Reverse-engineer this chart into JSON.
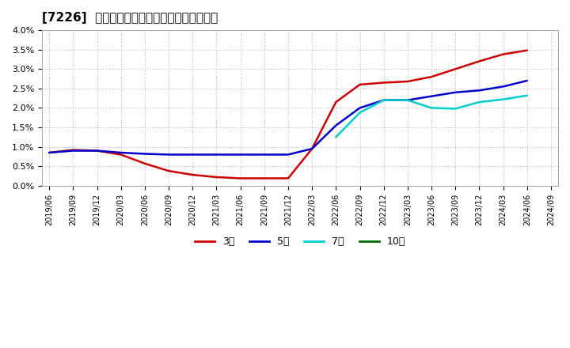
{
  "title": "[7226]  当期純利益マージンの標準偏差の推移",
  "ylim": [
    0.0,
    0.04
  ],
  "yticks": [
    0.0,
    0.005,
    0.01,
    0.015,
    0.02,
    0.025,
    0.03,
    0.035,
    0.04
  ],
  "ytick_labels": [
    "0.0%",
    "0.5%",
    "1.0%",
    "1.5%",
    "2.0%",
    "2.5%",
    "3.0%",
    "3.5%",
    "4.0%"
  ],
  "background_color": "#ffffff",
  "plot_bg_color": "#ffffff",
  "grid_color": "#bbbbbb",
  "series": {
    "3年": {
      "color": "#cc0000",
      "data": [
        [
          "2019/06",
          0.0085
        ],
        [
          "2019/09",
          0.0092
        ],
        [
          "2019/12",
          0.009
        ],
        [
          "2020/03",
          0.008
        ],
        [
          "2020/06",
          0.0057
        ],
        [
          "2020/09",
          0.0038
        ],
        [
          "2020/12",
          0.0028
        ],
        [
          "2021/03",
          0.0022
        ],
        [
          "2021/06",
          0.0019
        ],
        [
          "2021/09",
          0.0019
        ],
        [
          "2021/12",
          0.0019
        ],
        [
          "2022/03",
          0.0095
        ],
        [
          "2022/06",
          0.0215
        ],
        [
          "2022/09",
          0.026
        ],
        [
          "2022/12",
          0.0265
        ],
        [
          "2023/03",
          0.0268
        ],
        [
          "2023/06",
          0.028
        ],
        [
          "2023/09",
          0.03
        ],
        [
          "2023/12",
          0.032
        ],
        [
          "2024/03",
          0.0338
        ],
        [
          "2024/06",
          0.0348
        ]
      ]
    },
    "5年": {
      "color": "#0000cc",
      "data": [
        [
          "2019/06",
          0.0085
        ],
        [
          "2019/09",
          0.009
        ],
        [
          "2019/12",
          0.009
        ],
        [
          "2020/03",
          0.0085
        ],
        [
          "2020/06",
          0.0082
        ],
        [
          "2020/09",
          0.008
        ],
        [
          "2020/12",
          0.008
        ],
        [
          "2021/03",
          0.008
        ],
        [
          "2021/06",
          0.008
        ],
        [
          "2021/09",
          0.008
        ],
        [
          "2021/12",
          0.008
        ],
        [
          "2022/03",
          0.0095
        ],
        [
          "2022/06",
          0.0155
        ],
        [
          "2022/09",
          0.02
        ],
        [
          "2022/12",
          0.022
        ],
        [
          "2023/03",
          0.022
        ],
        [
          "2023/06",
          0.023
        ],
        [
          "2023/09",
          0.024
        ],
        [
          "2023/12",
          0.0245
        ],
        [
          "2024/03",
          0.0255
        ],
        [
          "2024/06",
          0.027
        ]
      ]
    },
    "7年": {
      "color": "#00cccc",
      "data": [
        [
          "2022/06",
          0.0125
        ],
        [
          "2022/09",
          0.0188
        ],
        [
          "2022/12",
          0.022
        ],
        [
          "2023/03",
          0.022
        ],
        [
          "2023/06",
          0.02
        ],
        [
          "2023/09",
          0.0198
        ],
        [
          "2023/12",
          0.0215
        ],
        [
          "2024/03",
          0.0222
        ],
        [
          "2024/06",
          0.0232
        ]
      ]
    },
    "10年": {
      "color": "#006600",
      "data": []
    }
  },
  "x_tick_labels": [
    "2019/06",
    "2019/09",
    "2019/12",
    "2020/03",
    "2020/06",
    "2020/09",
    "2020/12",
    "2021/03",
    "2021/06",
    "2021/09",
    "2021/12",
    "2022/03",
    "2022/06",
    "2022/09",
    "2022/12",
    "2023/03",
    "2023/06",
    "2023/09",
    "2023/12",
    "2024/03",
    "2024/06",
    "2024/09"
  ],
  "legend_labels": [
    "3年",
    "5年",
    "7年",
    "10年"
  ],
  "legend_colors": [
    "#cc0000",
    "#0000cc",
    "#00cccc",
    "#006600"
  ]
}
